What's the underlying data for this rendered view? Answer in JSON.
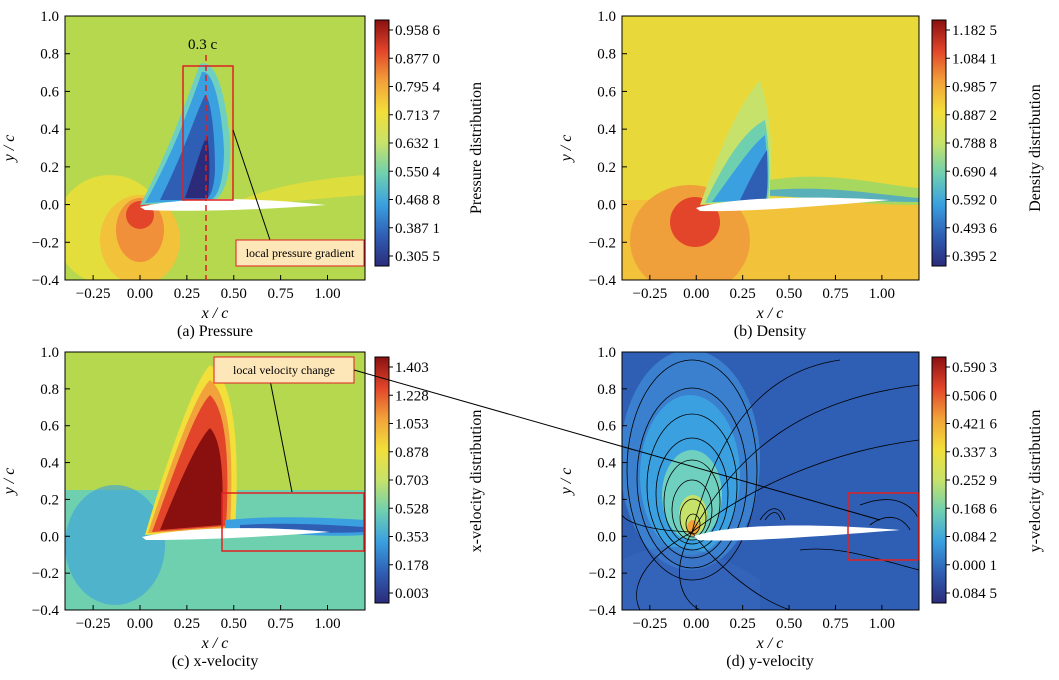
{
  "chart_data": [
    {
      "type": "heatmap",
      "field": "pressure",
      "caption": "(a) Pressure",
      "xlabel": "x / c",
      "ylabel": "y / c",
      "xlim": [
        -0.4,
        1.2
      ],
      "ylim": [
        -0.4,
        1.0
      ],
      "xticks": [
        "-0.25",
        "0.00",
        "0.25",
        "0.50",
        "0.75",
        "1.00"
      ],
      "yticks": [
        "1.0",
        "0.8",
        "0.6",
        "0.4",
        "0.2",
        "0.0",
        "-0.2",
        "-0.4"
      ],
      "colorbar": {
        "title": "Pressure distribution",
        "labels": [
          "0.958 6",
          "0.877 0",
          "0.795 4",
          "0.713 7",
          "0.632 1",
          "0.550 4",
          "0.468 8",
          "0.387 1",
          "0.305 5"
        ]
      },
      "annotations": {
        "cut_line_label": "0.3 c",
        "cut_line_x": 0.35,
        "box_x": [
          0.23,
          0.5
        ],
        "box_y": [
          0.02,
          0.74
        ],
        "callout": "local pressure gradient"
      }
    },
    {
      "type": "heatmap",
      "field": "density",
      "caption": "(b) Density",
      "xlabel": "x / c",
      "ylabel": "y / c",
      "xlim": [
        -0.4,
        1.2
      ],
      "ylim": [
        -0.4,
        1.0
      ],
      "xticks": [
        "-0.25",
        "0.00",
        "0.25",
        "0.50",
        "0.75",
        "1.00"
      ],
      "yticks": [
        "1.0",
        "0.8",
        "0.6",
        "0.4",
        "0.2",
        "0.0",
        "-0.2",
        "-0.4"
      ],
      "colorbar": {
        "title": "Density distribution",
        "labels": [
          "1.182 5",
          "1.084 1",
          "0.985 7",
          "0.887 2",
          "0.788 8",
          "0.690 4",
          "0.592 0",
          "0.493 6",
          "0.395 2"
        ]
      }
    },
    {
      "type": "heatmap",
      "field": "x-velocity",
      "caption": "(c) x-velocity",
      "xlabel": "x / c",
      "ylabel": "y / c",
      "xlim": [
        -0.4,
        1.2
      ],
      "ylim": [
        -0.4,
        1.0
      ],
      "xticks": [
        "-0.25",
        "0.00",
        "0.25",
        "0.50",
        "0.75",
        "1.00"
      ],
      "yticks": [
        "1.0",
        "0.8",
        "0.6",
        "0.4",
        "0.2",
        "0.0",
        "-0.2",
        "-0.4"
      ],
      "colorbar": {
        "title": "x-velocity distribution",
        "labels": [
          "1.403",
          "1.228",
          "1.053",
          "0.878",
          "0.703",
          "0.528",
          "0.353",
          "0.178",
          "0.003"
        ]
      },
      "annotations": {
        "box_x": [
          0.44,
          1.2
        ],
        "box_y": [
          -0.1,
          0.23
        ],
        "callout": "local velocity change"
      }
    },
    {
      "type": "heatmap",
      "field": "y-velocity",
      "caption": "(d) y-velocity",
      "xlabel": "x / c",
      "ylabel": "y / c",
      "xlim": [
        -0.4,
        1.2
      ],
      "ylim": [
        -0.4,
        1.0
      ],
      "xticks": [
        "-0.25",
        "0.00",
        "0.25",
        "0.50",
        "0.75",
        "1.00"
      ],
      "yticks": [
        "1.0",
        "0.8",
        "0.6",
        "0.4",
        "0.2",
        "0.0",
        "-0.2",
        "-0.4"
      ],
      "colorbar": {
        "title": "y-velocity distribution",
        "labels": [
          "0.590 3",
          "0.506 0",
          "0.421 6",
          "0.337 3",
          "0.252 9",
          "0.168 6",
          "0.084 2",
          "0.000 1",
          "0.084 5"
        ]
      },
      "annotations": {
        "box_x": [
          0.83,
          1.2
        ],
        "box_y": [
          -0.13,
          0.23
        ]
      }
    }
  ],
  "colormap": [
    "#2b2b7a",
    "#2f5fb5",
    "#3aa0e0",
    "#6fd0b0",
    "#c7e26a",
    "#f2df3a",
    "#f2a23a",
    "#e2452a",
    "#8a1010"
  ],
  "colors": {
    "annotation_box": "#e02020",
    "callout_fill": "#fde6b8",
    "callout_border": "#e02020",
    "airfoil": "#ffffff"
  }
}
